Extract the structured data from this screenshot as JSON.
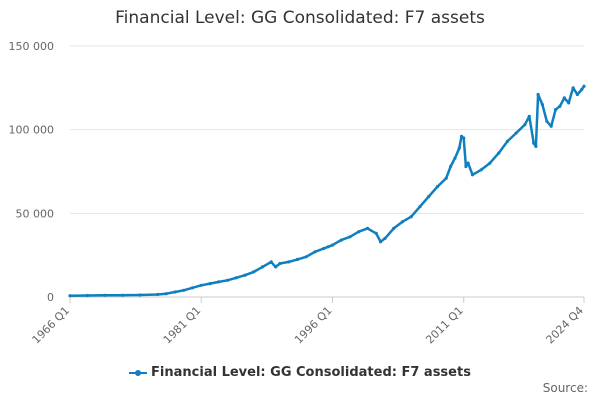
{
  "chart_data": {
    "type": "line",
    "title": "Financial Level: GG Consolidated: F7 assets",
    "xlabel": "",
    "ylabel": "",
    "ylim": [
      0,
      150000
    ],
    "y_ticks": [
      0,
      50000,
      100000,
      150000
    ],
    "y_tick_labels": [
      "0",
      "50 000",
      "100 000",
      "150 000"
    ],
    "x_tick_labels": [
      "1966 Q1",
      "1981 Q1",
      "1996 Q1",
      "2011 Q1",
      "2024 Q4"
    ],
    "x_tick_years": [
      1966.0,
      1981.0,
      1996.0,
      2011.0,
      2024.75
    ],
    "grid": true,
    "legend_position": "bottom",
    "series": [
      {
        "name": "Financial Level: GG Consolidated: F7 assets",
        "color": "#0f7fbf",
        "points": [
          [
            1966.0,
            800
          ],
          [
            1968.0,
            900
          ],
          [
            1970.0,
            1000
          ],
          [
            1972.0,
            1100
          ],
          [
            1974.0,
            1200
          ],
          [
            1976.0,
            1500
          ],
          [
            1977.0,
            2000
          ],
          [
            1978.0,
            3000
          ],
          [
            1979.0,
            4000
          ],
          [
            1980.0,
            5500
          ],
          [
            1981.0,
            7000
          ],
          [
            1982.0,
            8000
          ],
          [
            1983.0,
            9000
          ],
          [
            1984.0,
            10000
          ],
          [
            1985.0,
            11500
          ],
          [
            1986.0,
            13000
          ],
          [
            1987.0,
            15000
          ],
          [
            1988.0,
            18000
          ],
          [
            1989.0,
            21000
          ],
          [
            1989.5,
            18000
          ],
          [
            1990.0,
            20000
          ],
          [
            1991.0,
            21000
          ],
          [
            1992.0,
            22500
          ],
          [
            1993.0,
            24000
          ],
          [
            1994.0,
            27000
          ],
          [
            1995.0,
            29000
          ],
          [
            1995.5,
            30000
          ],
          [
            1996.0,
            31000
          ],
          [
            1997.0,
            34000
          ],
          [
            1998.0,
            36000
          ],
          [
            1999.0,
            39000
          ],
          [
            2000.0,
            41000
          ],
          [
            2001.0,
            38000
          ],
          [
            2001.5,
            33000
          ],
          [
            2002.0,
            35000
          ],
          [
            2003.0,
            41000
          ],
          [
            2004.0,
            45000
          ],
          [
            2005.0,
            48000
          ],
          [
            2006.0,
            54000
          ],
          [
            2007.0,
            60000
          ],
          [
            2008.0,
            66000
          ],
          [
            2009.0,
            71000
          ],
          [
            2009.5,
            78000
          ],
          [
            2010.0,
            83000
          ],
          [
            2010.5,
            89000
          ],
          [
            2010.75,
            96000
          ],
          [
            2011.0,
            95000
          ],
          [
            2011.25,
            78000
          ],
          [
            2011.5,
            80000
          ],
          [
            2012.0,
            73000
          ],
          [
            2013.0,
            76000
          ],
          [
            2014.0,
            80000
          ],
          [
            2015.0,
            86000
          ],
          [
            2016.0,
            93000
          ],
          [
            2017.0,
            98000
          ],
          [
            2018.0,
            103000
          ],
          [
            2018.5,
            108000
          ],
          [
            2019.0,
            92000
          ],
          [
            2019.25,
            90000
          ],
          [
            2019.5,
            121000
          ],
          [
            2020.0,
            115000
          ],
          [
            2020.5,
            105000
          ],
          [
            2021.0,
            102000
          ],
          [
            2021.5,
            112000
          ],
          [
            2022.0,
            114000
          ],
          [
            2022.5,
            119000
          ],
          [
            2023.0,
            116000
          ],
          [
            2023.5,
            125000
          ],
          [
            2024.0,
            121000
          ],
          [
            2024.5,
            124000
          ],
          [
            2024.75,
            126000
          ]
        ]
      }
    ]
  },
  "source_label": "Source:"
}
